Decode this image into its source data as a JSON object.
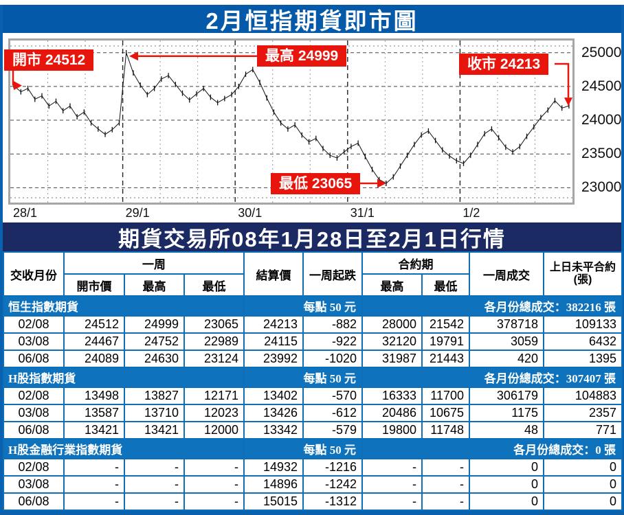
{
  "title_bar": {
    "text": "2月恒指期貨即市圖"
  },
  "chart_data": {
    "type": "line",
    "title": "2月恒指期貨即市圖",
    "x_labels": [
      "28/1",
      "29/1",
      "30/1",
      "31/1",
      "1/2"
    ],
    "y_ticks": [
      25000,
      24500,
      24000,
      23500,
      23000
    ],
    "ylim": [
      22780,
      25180
    ],
    "grid": true,
    "annotations": {
      "open": {
        "label": "開市 24512",
        "value": 24512
      },
      "high": {
        "label": "最高 24999",
        "value": 24999
      },
      "close": {
        "label": "收市 24213",
        "value": 24213
      },
      "low": {
        "label": "最低 23065",
        "value": 23065
      }
    },
    "points": [
      24512,
      24420,
      24470,
      24310,
      24360,
      24210,
      24280,
      24140,
      24210,
      24050,
      24120,
      23960,
      23870,
      23790,
      23860,
      23960,
      24999,
      24700,
      24520,
      24380,
      24470,
      24610,
      24660,
      24530,
      24400,
      24300,
      24390,
      24470,
      24340,
      24260,
      24320,
      24380,
      24500,
      24680,
      24750,
      24560,
      24330,
      24120,
      23960,
      23870,
      23930,
      23780,
      23680,
      23730,
      23580,
      23480,
      23440,
      23530,
      23610,
      23660,
      23460,
      23270,
      23120,
      23065,
      23160,
      23320,
      23480,
      23640,
      23780,
      23840,
      23700,
      23560,
      23470,
      23400,
      23360,
      23480,
      23640,
      23800,
      23870,
      23740,
      23600,
      23530,
      23610,
      23760,
      23900,
      24040,
      24150,
      24290,
      24180,
      24213
    ]
  },
  "table": {
    "title": "期貨交易所08年1月28日至2月1日行情",
    "header": {
      "settle_month": "交收月份",
      "week": "一周",
      "open": "開市價",
      "high": "最高",
      "low": "最低",
      "settlement": "結算價",
      "week_change": "一周起跌",
      "contract_period": "合約期",
      "cp_high": "最高",
      "cp_low": "最低",
      "week_volume": "一周成交",
      "prev_open_interest_line1": "上日未平合約",
      "prev_open_interest_line2": "(張)"
    },
    "sections": [
      {
        "name": "恒生指數期貨",
        "point_value": "每點 50 元",
        "total_volume": "各月份總成交：382216 張",
        "rows": [
          [
            "02/08",
            "24512",
            "24999",
            "23065",
            "24213",
            "-882",
            "28000",
            "21542",
            "378718",
            "109133"
          ],
          [
            "03/08",
            "24467",
            "24752",
            "22989",
            "24115",
            "-922",
            "32120",
            "19791",
            "3059",
            "6432"
          ],
          [
            "06/08",
            "24089",
            "24630",
            "23124",
            "23992",
            "-1020",
            "31987",
            "21443",
            "420",
            "1395"
          ]
        ]
      },
      {
        "name": "H股指數期貨",
        "point_value": "每點 50 元",
        "total_volume": "各月份總成交：307407 張",
        "rows": [
          [
            "02/08",
            "13498",
            "13827",
            "12171",
            "13402",
            "-570",
            "16333",
            "11700",
            "306179",
            "104883"
          ],
          [
            "03/08",
            "13587",
            "13710",
            "12023",
            "13426",
            "-612",
            "20486",
            "10675",
            "1175",
            "2357"
          ],
          [
            "06/08",
            "13421",
            "13421",
            "12000",
            "13342",
            "-579",
            "19800",
            "11748",
            "48",
            "771"
          ]
        ]
      },
      {
        "name": "H股金融行業指數期貨",
        "point_value": "每點 50 元",
        "total_volume": "各月份總成交：0 張",
        "rows": [
          [
            "02/08",
            "-",
            "-",
            "-",
            "14932",
            "-1216",
            "-",
            "-",
            "0",
            "0"
          ],
          [
            "03/08",
            "-",
            "-",
            "-",
            "14896",
            "-1242",
            "-",
            "-",
            "0",
            "0"
          ],
          [
            "06/08",
            "-",
            "-",
            "-",
            "15015",
            "-1312",
            "-",
            "-",
            "0",
            "0"
          ]
        ]
      }
    ]
  },
  "colors": {
    "title_bar_blue": "#0459a8",
    "table_title_navy": "#1b2a63",
    "section_blue": "#0e72bc",
    "table_border_blue": "#0d6fba",
    "annotation_red": "#e8150c",
    "plot_frame_gray": "#a6a6a6"
  }
}
